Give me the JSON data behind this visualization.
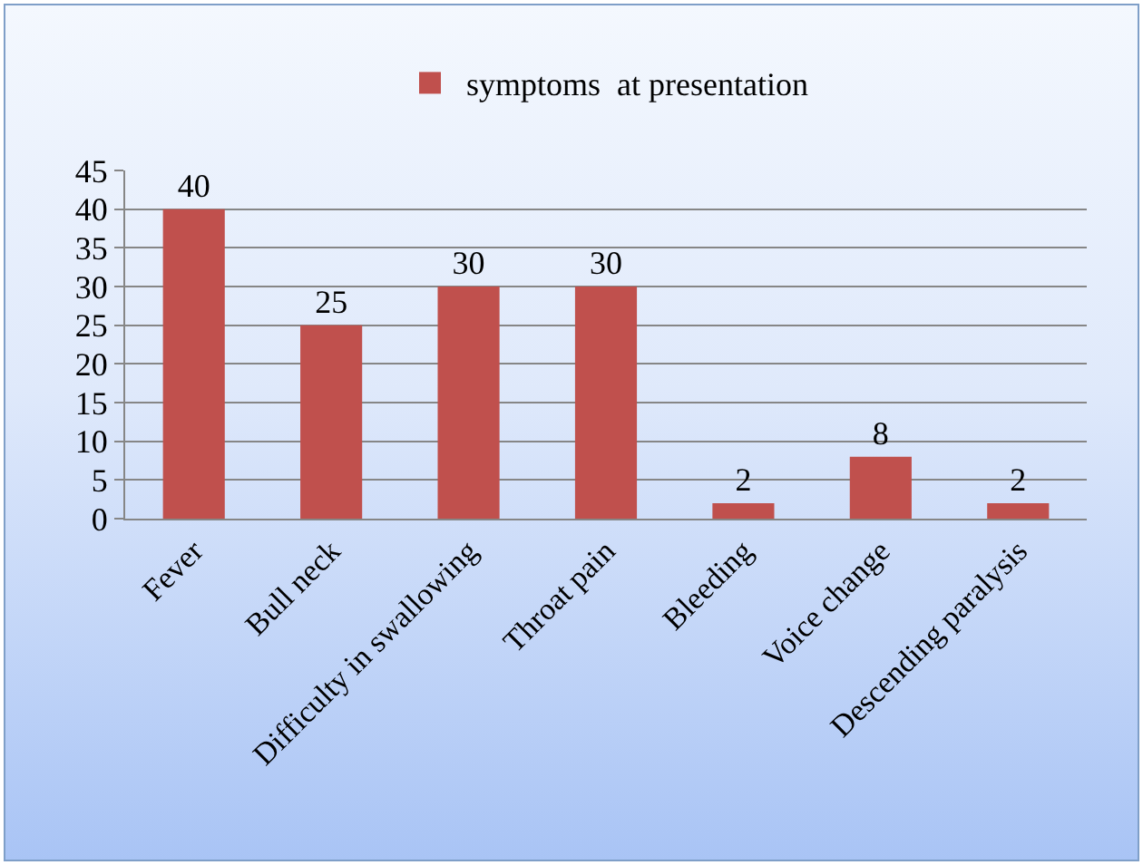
{
  "chart_data": {
    "type": "bar",
    "categories": [
      "Fever",
      "Bull neck",
      "Difficulty in swallowing",
      "Throat pain",
      "Bleeding",
      "Voice change",
      "Descending paralysis"
    ],
    "series": [
      {
        "name": "symptoms  at presentation",
        "color": "#c0504d",
        "values": [
          40,
          25,
          30,
          30,
          2,
          8,
          2
        ]
      }
    ],
    "ylim": [
      0,
      45
    ],
    "yticks": [
      0,
      5,
      10,
      15,
      20,
      25,
      30,
      35,
      40,
      45
    ],
    "grid": "y",
    "legend": "top",
    "data_labels": true
  }
}
